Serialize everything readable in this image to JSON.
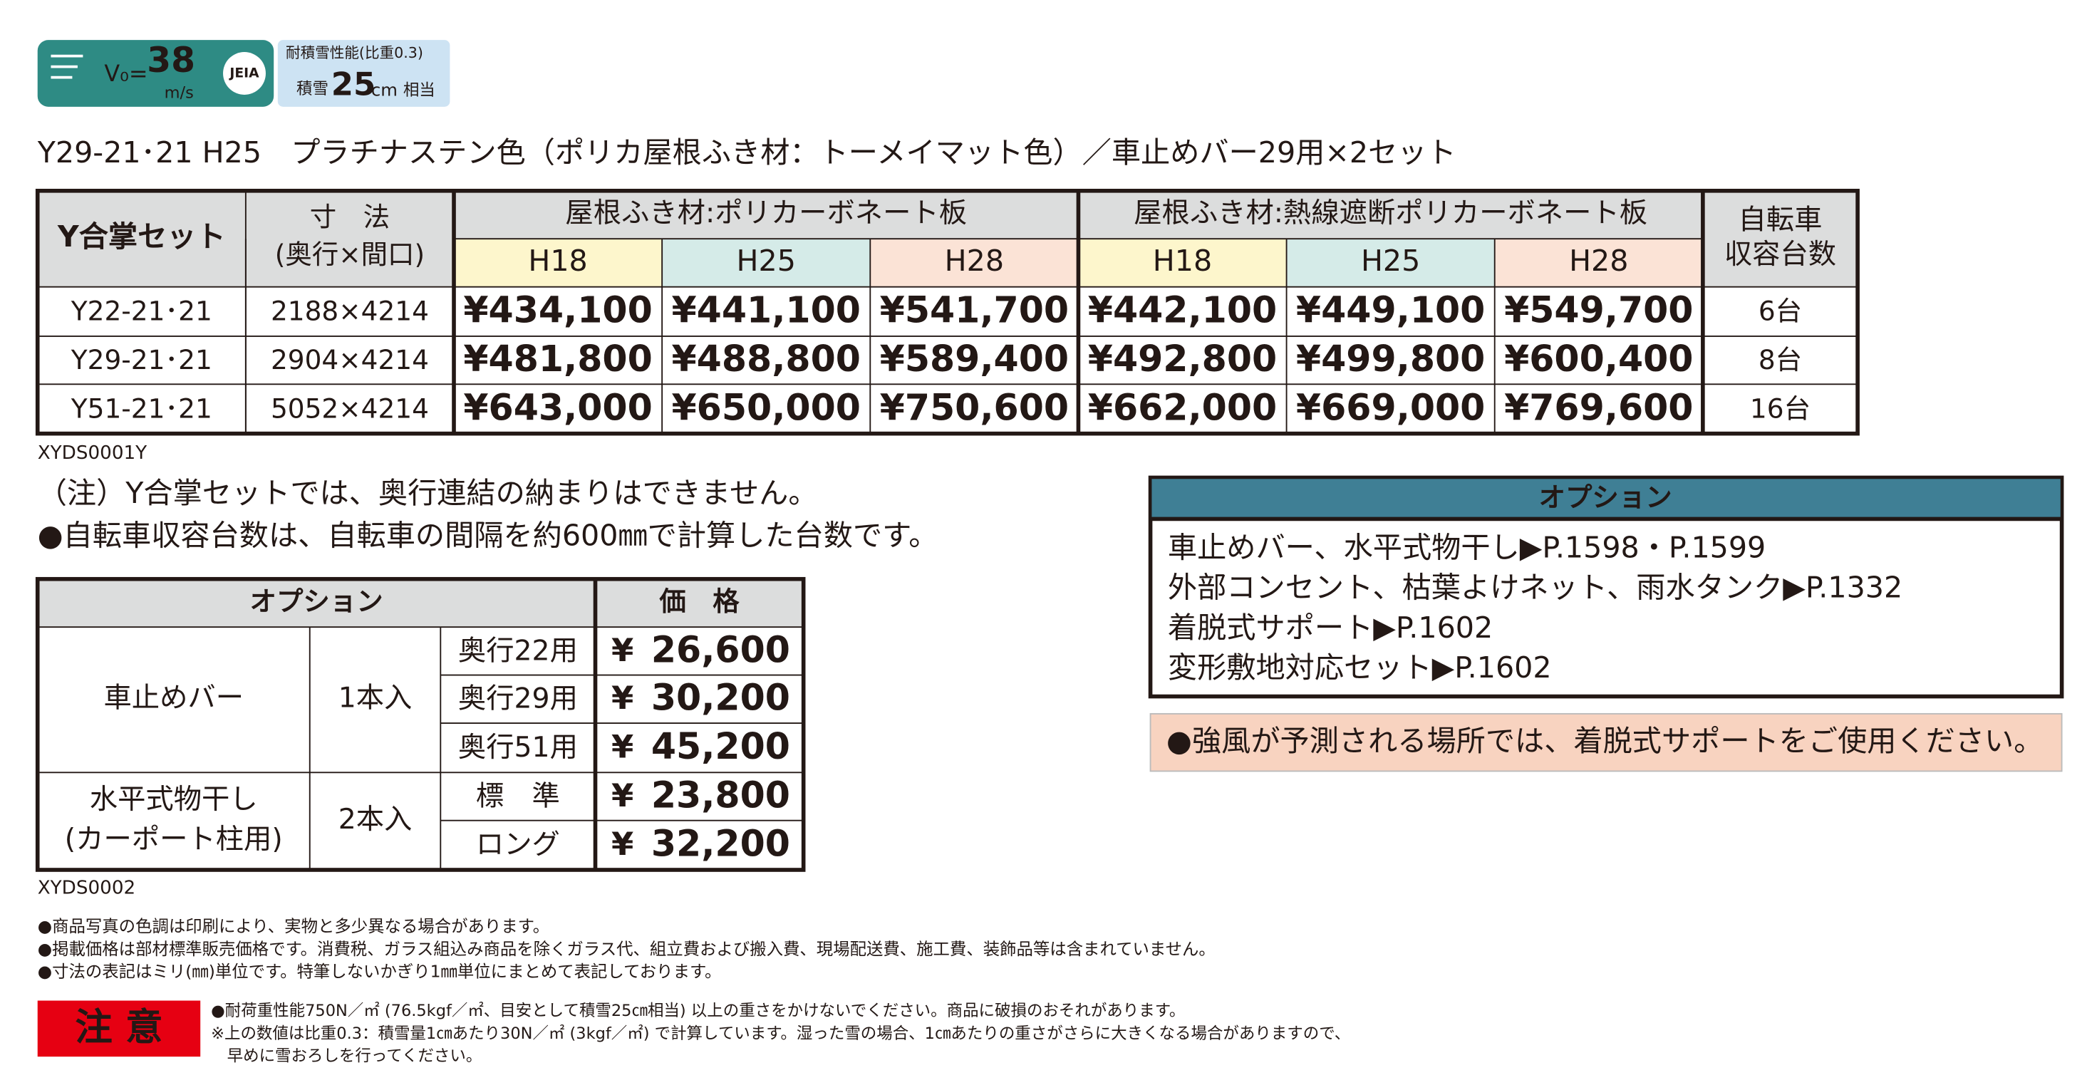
{
  "badge": {
    "v0": "V₀=",
    "speed": "38",
    "speed_unit": "m/s",
    "jeia": "JEIA",
    "snow_title": "耐積雪性能(比重0.3)",
    "snow_label": "積雪",
    "snow_value": "25",
    "snow_unit": "cm",
    "snow_suffix": "相当"
  },
  "product_line": "Y29-21･21 H25　プラチナステン色（ポリカ屋根ふき材：トーメイマット色）／車止めバー29用×2セット",
  "table": {
    "header": {
      "set": "Y合掌セット",
      "size": [
        "寸　法",
        "(奥行×間口)"
      ],
      "group1": "屋根ふき材:ポリカーボネート板",
      "group2": "屋根ふき材:熱線遮断ポリカーボネート板",
      "grades": [
        "H18",
        "H25",
        "H28",
        "H18",
        "H25",
        "H28"
      ],
      "capacity": [
        "自転車",
        "収容台数"
      ]
    },
    "rows": [
      [
        "Y22-21･21",
        "2188×4214",
        "¥434,100",
        "¥441,100",
        "¥541,700",
        "¥442,100",
        "¥449,100",
        "¥549,700",
        "6台"
      ],
      [
        "Y29-21･21",
        "2904×4214",
        "¥481,800",
        "¥488,800",
        "¥589,400",
        "¥492,800",
        "¥499,800",
        "¥600,400",
        "8台"
      ],
      [
        "Y51-21･21",
        "5052×4214",
        "¥643,000",
        "¥650,000",
        "¥750,600",
        "¥662,000",
        "¥669,000",
        "¥769,600",
        "16台"
      ]
    ],
    "code": "XYDS0001Y"
  },
  "notes": [
    "（注）Y合掌セットでは、奥行連結の納まりはできません。",
    "●自転車収容台数は、自転車の間隔を約600㎜で計算した台数です。"
  ],
  "option_table": {
    "header": {
      "option": "オプション",
      "price": "価　格"
    },
    "groups": [
      {
        "name": [
          "車止めバー"
        ],
        "qty": "1本入",
        "items": [
          {
            "label": "奥行22用",
            "yen": "¥",
            "price": "26,600"
          },
          {
            "label": "奥行29用",
            "yen": "¥",
            "price": "30,200"
          },
          {
            "label": "奥行51用",
            "yen": "¥",
            "price": "45,200"
          }
        ]
      },
      {
        "name": [
          "水平式物干し",
          "(カーポート柱用)"
        ],
        "qty": "2本入",
        "items": [
          {
            "label": "標　準",
            "yen": "¥",
            "price": "23,800"
          },
          {
            "label": "ロング",
            "yen": "¥",
            "price": "32,200"
          }
        ]
      }
    ],
    "code": "XYDS0002"
  },
  "option_box": {
    "title": "オプション",
    "lines": [
      "車止めバー、水平式物干し▶P.1598・P.1599",
      "外部コンセント、枯葉よけネット、雨水タンク▶P.1332",
      "着脱式サポート▶P.1602",
      "変形敷地対応セット▶P.1602"
    ]
  },
  "warning": "●強風が予測される場所では、着脱式サポートをご使用ください。",
  "footnotes": [
    "●商品写真の色調は印刷により、実物と多少異なる場合があります。",
    "●掲載価格は部材標準販売価格です。消費税、ガラス組込み商品を除くガラス代、組立費および搬入費、現場配送費、施工費、装飾品等は含まれていません。",
    "●寸法の表記はミリ(㎜)単位です。特筆しないかぎり1㎜単位にまとめて表記しております。"
  ],
  "caution": {
    "label": "注 意",
    "lines": [
      "●耐荷重性能750N／㎡ (76.5kgf／㎡、目安として積雪25㎝相当) 以上の重さをかけないでください。商品に破損のおそれがあります。",
      "※上の数値は比重0.3：積雪量1㎝あたり30N／㎡ (3kgf／㎡) で計算しています。湿った雪の場合、1㎝あたりの重さがさらに大きくなる場合がありますので、",
      "　早めに雪おろしを行ってください。"
    ]
  }
}
